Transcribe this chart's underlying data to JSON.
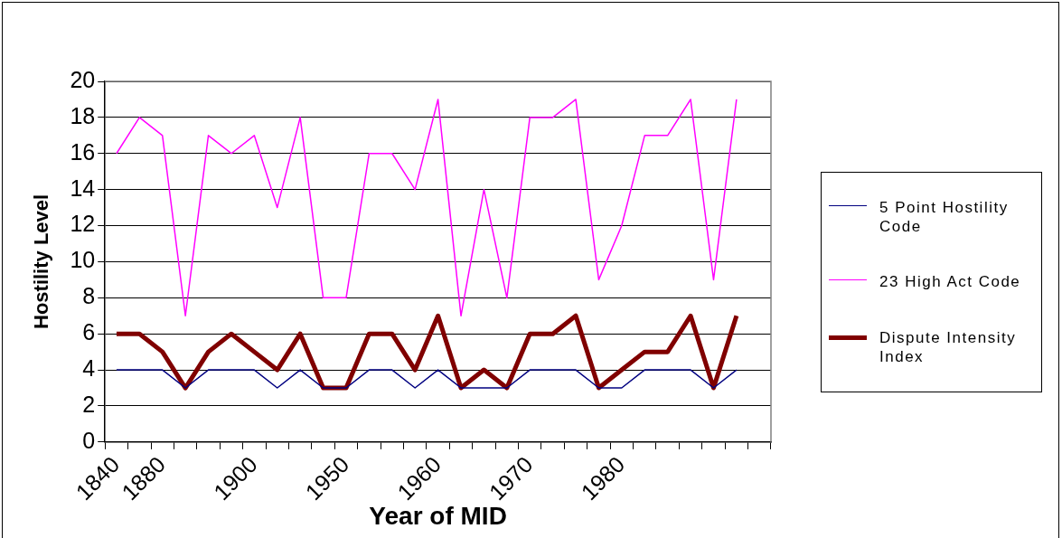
{
  "chart_data": {
    "type": "line",
    "xlabel": "Year of MID",
    "ylabel": "Hostility Level",
    "categories": [
      "1840",
      null,
      "1880",
      null,
      null,
      null,
      "1900",
      null,
      null,
      null,
      "1950",
      null,
      null,
      null,
      "1960",
      null,
      null,
      null,
      "1970",
      null,
      null,
      null,
      "1980",
      null,
      null,
      null,
      null,
      null,
      null
    ],
    "ylim": [
      0,
      20
    ],
    "yticks": [
      0,
      2,
      4,
      6,
      8,
      10,
      12,
      14,
      16,
      18,
      20
    ],
    "grid": "y",
    "legend": "right",
    "marker": "none",
    "series": [
      {
        "name": "5 Point Hostility Code",
        "color": "#000080",
        "values": [
          4,
          4,
          4,
          3,
          4,
          4,
          4,
          3,
          4,
          3,
          3,
          4,
          4,
          3,
          4,
          3,
          3,
          3,
          4,
          4,
          4,
          3,
          3,
          4,
          4,
          4,
          3,
          4,
          null
        ]
      },
      {
        "name": "23 High Act Code",
        "color": "#ff00ff",
        "values": [
          16,
          18,
          17,
          7,
          17,
          16,
          17,
          13,
          18,
          8,
          8,
          16,
          16,
          14,
          19,
          7,
          14,
          8,
          18,
          18,
          19,
          9,
          12,
          17,
          17,
          19,
          9,
          19,
          null
        ]
      },
      {
        "name": "Dispute Intensity Index",
        "color": "#800000",
        "values": [
          6,
          6,
          5,
          3,
          5,
          6,
          5,
          4,
          6,
          3,
          3,
          6,
          6,
          4,
          7,
          3,
          4,
          3,
          6,
          6,
          7,
          3,
          4,
          5,
          5,
          7,
          3,
          7,
          null
        ]
      }
    ]
  }
}
